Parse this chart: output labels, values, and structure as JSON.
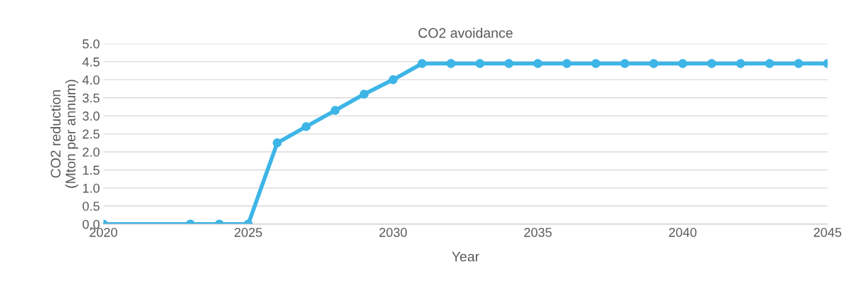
{
  "chart_data": {
    "type": "line",
    "title": "CO2 avoidance",
    "xlabel": "Year",
    "ylabel": "CO2 reduction\n(Mton per annum)",
    "x": [
      2020,
      2023,
      2024,
      2025,
      2026,
      2027,
      2028,
      2029,
      2030,
      2031,
      2032,
      2033,
      2034,
      2035,
      2036,
      2037,
      2038,
      2039,
      2040,
      2041,
      2042,
      2043,
      2044,
      2045
    ],
    "series": [
      {
        "color": "#3db5e6",
        "values": [
          0,
          0,
          0,
          0,
          2.25,
          2.7,
          3.15,
          3.6,
          4.0,
          4.45,
          4.45,
          4.45,
          4.45,
          4.45,
          4.45,
          4.45,
          4.45,
          4.45,
          4.45,
          4.45,
          4.45,
          4.45,
          4.45,
          4.45
        ]
      }
    ],
    "xlim": [
      2020,
      2045
    ],
    "xticks": [
      2020,
      2025,
      2030,
      2035,
      2040,
      2045
    ],
    "ylim": [
      0,
      5
    ],
    "yticks": [
      {
        "value": 0,
        "label": "0.0"
      },
      {
        "value": 0.5,
        "label": "0.5"
      },
      {
        "value": 1,
        "label": "1.0"
      },
      {
        "value": 1.5,
        "label": "1.5"
      },
      {
        "value": 2,
        "label": "2.0"
      },
      {
        "value": 2.5,
        "label": "2.5"
      },
      {
        "value": 3,
        "label": "3.0"
      },
      {
        "value": 3.5,
        "label": "3.5"
      },
      {
        "value": 4,
        "label": "4.0"
      },
      {
        "value": 4.5,
        "label": "4.5"
      },
      {
        "value": 5,
        "label": "5.0"
      }
    ],
    "grid": "y",
    "marker": "circle",
    "line_style": "solid"
  }
}
